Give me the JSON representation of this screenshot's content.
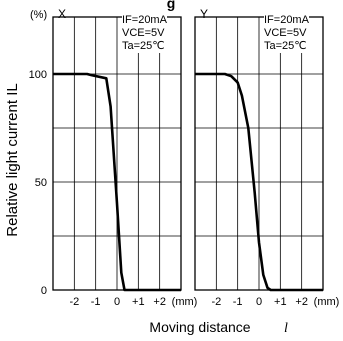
{
  "header_fragment": "g",
  "y_unit": "(%)",
  "y_axis_label": "Relative light current",
  "y_axis_symbol": "IL",
  "x_axis_label": "Moving distance",
  "x_axis_symbol": "l",
  "x_unit": "(mm)",
  "panels": [
    {
      "label": "X",
      "conditions": [
        "IF=20mA",
        "VCE=5V",
        "Ta=25℃"
      ]
    },
    {
      "label": "Y",
      "conditions": [
        "IF=20mA",
        "VCE=5V",
        "Ta=25℃"
      ]
    }
  ],
  "chart_data": [
    {
      "type": "line",
      "title": "X",
      "xlabel": "Moving distance l (mm)",
      "ylabel": "Relative light current IL (%)",
      "xlim": [
        -3,
        3
      ],
      "ylim": [
        0,
        100
      ],
      "x_ticks": [
        "-2",
        "-1",
        "0",
        "+1",
        "+2"
      ],
      "y_ticks": [
        "0",
        "50",
        "100"
      ],
      "grid": true,
      "series": [
        {
          "x": [
            -3,
            -1.4,
            -1.2,
            -0.5,
            -0.3,
            0,
            0.2,
            0.35,
            3
          ],
          "y": [
            100,
            100,
            99.5,
            98,
            85,
            40,
            8,
            0,
            0
          ]
        }
      ]
    },
    {
      "type": "line",
      "title": "Y",
      "xlabel": "Moving distance l (mm)",
      "ylabel": "Relative light current IL (%)",
      "xlim": [
        -3,
        3
      ],
      "ylim": [
        0,
        100
      ],
      "x_ticks": [
        "-2",
        "-1",
        "0",
        "+1",
        "+2"
      ],
      "y_ticks": [
        "0",
        "50",
        "100"
      ],
      "grid": true,
      "series": [
        {
          "x": [
            -3,
            -1.6,
            -1.3,
            -1.0,
            -0.8,
            -0.5,
            -0.2,
            0,
            0.2,
            0.4,
            0.55,
            3
          ],
          "y": [
            100,
            100,
            99,
            96,
            90,
            75,
            45,
            22,
            7,
            1,
            0,
            0
          ]
        }
      ]
    }
  ]
}
